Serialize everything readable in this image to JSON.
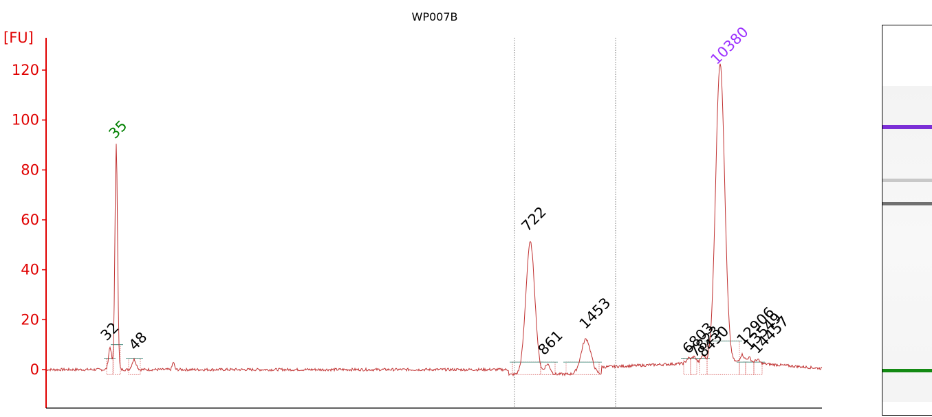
{
  "chart_data": {
    "type": "line",
    "title": "WP007B",
    "ylabel": "[FU]",
    "ylim": [
      -15,
      130
    ],
    "yticks": [
      0,
      20,
      40,
      60,
      80,
      100,
      120
    ],
    "grid": false,
    "colors": {
      "axis": "#e00000",
      "trace": "#c03030",
      "marker": "#008000",
      "upper_marker": "#9b30ff",
      "peak_label": "#000000",
      "baseline": "#2e7d6e"
    },
    "peak_labels": [
      {
        "label": "32",
        "color": "black"
      },
      {
        "label": "35",
        "color": "green"
      },
      {
        "label": "48",
        "color": "black"
      },
      {
        "label": "722",
        "color": "black"
      },
      {
        "label": "861",
        "color": "black"
      },
      {
        "label": "1453",
        "color": "black"
      },
      {
        "label": "6803",
        "color": "black"
      },
      {
        "label": "7823",
        "color": "black"
      },
      {
        "label": "8430",
        "color": "black"
      },
      {
        "label": "10380",
        "color": "purple"
      },
      {
        "label": "12906",
        "color": "black"
      },
      {
        "label": "13549",
        "color": "black"
      },
      {
        "label": "14457",
        "color": "black"
      }
    ],
    "peaks_fu": [
      {
        "label": "32",
        "height": 9
      },
      {
        "label": "35",
        "height": 90
      },
      {
        "label": "48",
        "height": 4
      },
      {
        "label": "722",
        "height": 53
      },
      {
        "label": "861",
        "height": 4
      },
      {
        "label": "1453",
        "height": 14
      },
      {
        "label": "10380",
        "height": 120
      }
    ]
  },
  "gel": {
    "bands": [
      {
        "name": "upper-marker-band",
        "color": "#7b2fd6"
      },
      {
        "name": "faint-band",
        "color": "#c8c8c8"
      },
      {
        "name": "main-band",
        "color": "#707070"
      },
      {
        "name": "lower-marker-band",
        "color": "#138a13"
      }
    ]
  }
}
